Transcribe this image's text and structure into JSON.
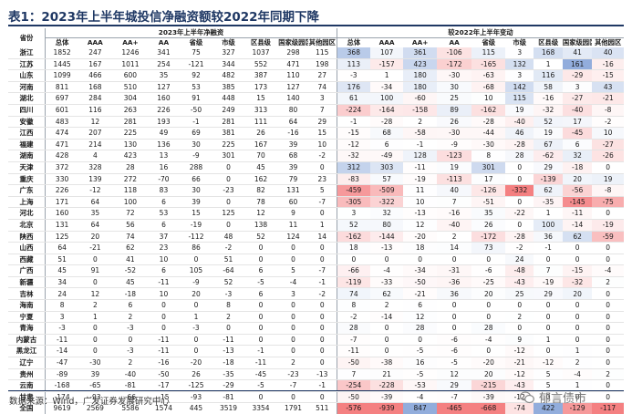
{
  "title": "表1：2023年上半年城投信净融资额较2022年同期下降",
  "header": {
    "group_left": "2023年上半年净融资",
    "group_right": "较2022年上半年变动",
    "prov_col": "省份",
    "left_cols": [
      "总体",
      "AAA",
      "AA+",
      "AA",
      "省级",
      "市级",
      "区县级",
      "国家级园区",
      "其他园区"
    ],
    "right_cols": [
      "总体",
      "AAA",
      "AA+",
      "AA",
      "省级",
      "市级",
      "区县级",
      "国家级园区",
      "其他园区"
    ]
  },
  "chart_data": {
    "type": "table",
    "title": "表1：2023年上半年城投信净融资额较2022年同期下降",
    "row_labels": [
      "浙江",
      "江苏",
      "山东",
      "河南",
      "湖北",
      "四川",
      "安徽",
      "江西",
      "福建",
      "湖南",
      "天津",
      "重庆",
      "广东",
      "上海",
      "河北",
      "北京",
      "陕西",
      "山西",
      "西藏",
      "广西",
      "新疆",
      "吉林",
      "海南",
      "宁夏",
      "青海",
      "内蒙古",
      "黑龙江",
      "辽宁",
      "贵州",
      "云南",
      "甘肃",
      "全国"
    ],
    "net_financing_h1_2023": [
      [
        1852,
        247,
        1246,
        341,
        75,
        327,
        1037,
        298,
        115
      ],
      [
        1445,
        167,
        1011,
        254,
        -121,
        344,
        552,
        471,
        198
      ],
      [
        1099,
        466,
        600,
        35,
        92,
        482,
        387,
        110,
        27
      ],
      [
        811,
        168,
        510,
        127,
        53,
        385,
        173,
        127,
        74
      ],
      [
        697,
        284,
        304,
        160,
        91,
        448,
        15,
        140,
        3
      ],
      [
        601,
        116,
        263,
        226,
        -50,
        249,
        313,
        80,
        7
      ],
      [
        483,
        12,
        281,
        193,
        -1,
        281,
        111,
        64,
        29
      ],
      [
        474,
        207,
        225,
        49,
        69,
        381,
        26,
        -16,
        15
      ],
      [
        471,
        214,
        130,
        136,
        30,
        225,
        167,
        39,
        10
      ],
      [
        428,
        4,
        423,
        13,
        -9,
        301,
        70,
        68,
        -2
      ],
      [
        372,
        328,
        28,
        16,
        288,
        0,
        45,
        39,
        0
      ],
      [
        330,
        139,
        272,
        -70,
        66,
        0,
        162,
        79,
        23
      ],
      [
        226,
        -12,
        118,
        83,
        30,
        -23,
        82,
        131,
        5
      ],
      [
        171,
        64,
        100,
        6,
        39,
        0,
        78,
        60,
        -7
      ],
      [
        160,
        35,
        72,
        53,
        15,
        125,
        12,
        9,
        0
      ],
      [
        131,
        64,
        56,
        6,
        -19,
        0,
        138,
        11,
        1
      ],
      [
        125,
        20,
        74,
        37,
        -112,
        48,
        52,
        124,
        14
      ],
      [
        64,
        -21,
        62,
        23,
        86,
        -2,
        0,
        0,
        0
      ],
      [
        51,
        0,
        41,
        10,
        0,
        51,
        0,
        0,
        0
      ],
      [
        45,
        91,
        -52,
        6,
        105,
        -64,
        6,
        5,
        -7
      ],
      [
        34,
        0,
        45,
        -11,
        -9,
        52,
        -5,
        -4,
        -1
      ],
      [
        24,
        12,
        -18,
        10,
        20,
        -3,
        6,
        3,
        -2
      ],
      [
        8,
        2,
        6,
        0,
        0,
        8,
        0,
        0,
        0
      ],
      [
        3,
        1,
        2,
        0,
        1,
        2,
        0,
        0,
        0
      ],
      [
        -3,
        0,
        -3,
        0,
        -3,
        0,
        0,
        0,
        0
      ],
      [
        -11,
        0,
        0,
        -11,
        0,
        -11,
        0,
        0,
        0
      ],
      [
        -14,
        0,
        -3,
        -11,
        0,
        -13,
        -1,
        0,
        0
      ],
      [
        -47,
        -30,
        2,
        -16,
        -20,
        -18,
        -11,
        2,
        0
      ],
      [
        -89,
        39,
        -40,
        -50,
        26,
        -35,
        -45,
        -23,
        -13
      ],
      [
        -168,
        -65,
        -81,
        -17,
        -125,
        -29,
        -5,
        -7,
        -1
      ],
      [
        -174,
        -93,
        -66,
        -15,
        -93,
        -81,
        0,
        0,
        0
      ],
      [
        9619,
        2569,
        5586,
        1574,
        445,
        3519,
        3354,
        1791,
        511
      ]
    ],
    "change_vs_h1_2022": [
      [
        368,
        107,
        361,
        -106,
        115,
        3,
        168,
        41,
        40
      ],
      [
        113,
        -157,
        423,
        -172,
        -165,
        132,
        1,
        161,
        -16
      ],
      [
        -3,
        1,
        180,
        -30,
        -63,
        3,
        116,
        -29,
        -15
      ],
      [
        176,
        -34,
        180,
        30,
        -68,
        142,
        58,
        3,
        43
      ],
      [
        61,
        100,
        -60,
        25,
        10,
        115,
        -16,
        -27,
        -21
      ],
      [
        -224,
        -164,
        -158,
        89,
        -162,
        19,
        -32,
        -40,
        -8
      ],
      [
        -1,
        -28,
        2,
        26,
        -28,
        -40,
        52,
        17,
        -2
      ],
      [
        -15,
        68,
        -58,
        -30,
        -44,
        46,
        19,
        -45,
        10
      ],
      [
        -12,
        6,
        -1,
        -9,
        -30,
        -28,
        67,
        6,
        -27
      ],
      [
        -32,
        -49,
        128,
        -123,
        8,
        28,
        -62,
        32,
        -26
      ],
      [
        312,
        303,
        -11,
        19,
        301,
        0,
        29,
        -18,
        0
      ],
      [
        -83,
        57,
        -19,
        -113,
        17,
        0,
        -139,
        20,
        19
      ],
      [
        -459,
        -509,
        11,
        40,
        -126,
        -332,
        62,
        -56,
        -8
      ],
      [
        -305,
        -322,
        10,
        7,
        -51,
        0,
        -35,
        -145,
        -75
      ],
      [
        3,
        32,
        -13,
        -16,
        35,
        -22,
        1,
        -11,
        0
      ],
      [
        52,
        80,
        12,
        -40,
        26,
        0,
        100,
        -14,
        -19
      ],
      [
        -162,
        -144,
        -20,
        2,
        -172,
        -28,
        36,
        62,
        -59
      ],
      [
        18,
        -13,
        18,
        14,
        73,
        -2,
        -1,
        0,
        0
      ],
      [
        0,
        0,
        0,
        0,
        0,
        24,
        0,
        0,
        0
      ],
      [
        -66,
        -4,
        -34,
        -31,
        -6,
        -48,
        7,
        -15,
        -4
      ],
      [
        -119,
        -33,
        -50,
        -36,
        -25,
        -43,
        -19,
        -32,
        2
      ],
      [
        74,
        62,
        -21,
        36,
        20,
        25,
        29,
        20,
        0
      ],
      [
        8,
        2,
        6,
        0,
        0,
        0,
        0,
        0,
        0
      ],
      [
        -2,
        -14,
        12,
        0,
        0,
        2,
        0,
        0,
        0
      ],
      [
        28,
        0,
        28,
        0,
        28,
        0,
        0,
        0,
        0
      ],
      [
        -7,
        0,
        0,
        -6,
        -4,
        9,
        1,
        0,
        0
      ],
      [
        -11,
        0,
        -5,
        -6,
        0,
        -12,
        0,
        1,
        0
      ],
      [
        -50,
        -38,
        16,
        -5,
        -20,
        -21,
        -12,
        2,
        0
      ],
      [
        7,
        21,
        -5,
        12,
        20,
        -12,
        5,
        -4,
        2
      ],
      [
        -254,
        -228,
        -53,
        29,
        -215,
        -43,
        5,
        1,
        0
      ],
      [
        -50,
        -39,
        -4,
        -7,
        -39,
        -12,
        0,
        0,
        0
      ],
      [
        -576,
        -939,
        847,
        -465,
        -668,
        -74,
        422,
        -129,
        -117
      ]
    ]
  },
  "source": "数据来源：Wind，广发证券发展研究中心",
  "watermark": "郁言债市",
  "colors": {
    "neg": "#f2696b",
    "pos": "#7f9fd6",
    "title": "#1f3864"
  }
}
